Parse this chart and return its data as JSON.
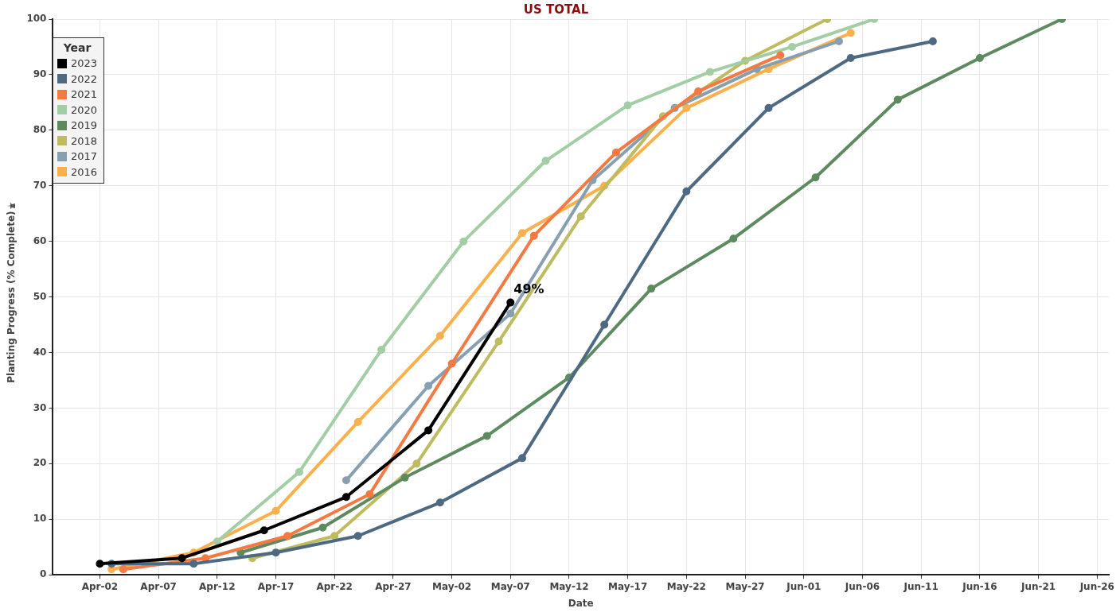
{
  "chart_data": {
    "type": "line",
    "title": "US TOTAL",
    "xlabel": "Date",
    "ylabel": "Planting Progress (% Complete)",
    "legend_title": "Year",
    "legend": "top left",
    "grid": true,
    "marker": "circle",
    "line_style": "solid",
    "xlim": [
      "--03-29",
      "--06-27"
    ],
    "xticks": [
      {
        "value": "--04-02",
        "label": "Apr-02"
      },
      {
        "value": "--04-07",
        "label": "Apr-07"
      },
      {
        "value": "--04-12",
        "label": "Apr-12"
      },
      {
        "value": "--04-17",
        "label": "Apr-17"
      },
      {
        "value": "--04-22",
        "label": "Apr-22"
      },
      {
        "value": "--04-27",
        "label": "Apr-27"
      },
      {
        "value": "--05-02",
        "label": "May-02"
      },
      {
        "value": "--05-07",
        "label": "May-07"
      },
      {
        "value": "--05-12",
        "label": "May-12"
      },
      {
        "value": "--05-17",
        "label": "May-17"
      },
      {
        "value": "--05-22",
        "label": "May-22"
      },
      {
        "value": "--05-27",
        "label": "May-27"
      },
      {
        "value": "--06-01",
        "label": "Jun-01"
      },
      {
        "value": "--06-06",
        "label": "Jun-06"
      },
      {
        "value": "--06-11",
        "label": "Jun-11"
      },
      {
        "value": "--06-16",
        "label": "Jun-16"
      },
      {
        "value": "--06-21",
        "label": "Jun-21"
      },
      {
        "value": "--06-26",
        "label": "Jun-26"
      }
    ],
    "ylim": [
      0,
      100
    ],
    "yticks": [
      0,
      10,
      20,
      30,
      40,
      50,
      60,
      70,
      80,
      90,
      100
    ],
    "series": [
      {
        "name": "2023",
        "color": "#000000",
        "x": [
          "--04-02",
          "--04-09",
          "--04-16",
          "--04-23",
          "--04-30",
          "--05-07"
        ],
        "values": [
          2,
          3,
          8,
          14,
          26,
          49
        ]
      },
      {
        "name": "2022",
        "color": "#4e6a82",
        "x": [
          "--04-03",
          "--04-10",
          "--04-17",
          "--04-24",
          "--05-01",
          "--05-08",
          "--05-15",
          "--05-22",
          "--05-29",
          "--06-05",
          "--06-12"
        ],
        "values": [
          2,
          2,
          4,
          7,
          13,
          21,
          45,
          69,
          84,
          93,
          96
        ]
      },
      {
        "name": "2021",
        "color": "#f47942",
        "x": [
          "--04-04",
          "--04-11",
          "--04-18",
          "--04-25",
          "--05-02",
          "--05-09",
          "--05-16",
          "--05-23",
          "--05-30"
        ],
        "values": [
          1,
          3,
          7,
          14.5,
          38,
          61,
          76,
          87,
          93.5
        ]
      },
      {
        "name": "2020",
        "color": "#a3cea5",
        "x": [
          "--04-12",
          "--04-19",
          "--04-26",
          "--05-03",
          "--05-10",
          "--05-17",
          "--05-24",
          "--05-31",
          "--06-07"
        ],
        "values": [
          6,
          18.5,
          40.5,
          60,
          74.5,
          84.5,
          90.5,
          95,
          100
        ]
      },
      {
        "name": "2019",
        "color": "#5d8a5f",
        "x": [
          "--04-14",
          "--04-21",
          "--04-28",
          "--05-05",
          "--05-12",
          "--05-19",
          "--05-26",
          "--06-02",
          "--06-09",
          "--06-16",
          "--06-23"
        ],
        "values": [
          4,
          8.5,
          17.5,
          25,
          35.5,
          51.5,
          60.5,
          71.5,
          85.5,
          93,
          100
        ]
      },
      {
        "name": "2018",
        "color": "#bfbb60",
        "x": [
          "--04-15",
          "--04-22",
          "--04-29",
          "--05-06",
          "--05-13",
          "--05-20",
          "--05-27",
          "--06-03"
        ],
        "values": [
          3,
          7,
          20,
          42,
          64.5,
          82.5,
          92.5,
          100
        ]
      },
      {
        "name": "2017",
        "color": "#86a0b2",
        "x": [
          "--04-23",
          "--04-30",
          "--05-07",
          "--05-14",
          "--05-21",
          "--05-28",
          "--06-04"
        ],
        "values": [
          17,
          34,
          47,
          71,
          84,
          91,
          96
        ]
      },
      {
        "name": "2016",
        "color": "#fbb04e",
        "x": [
          "--04-03",
          "--04-10",
          "--04-17",
          "--04-24",
          "--05-01",
          "--05-08",
          "--05-15",
          "--05-22",
          "--05-29",
          "--06-05"
        ],
        "values": [
          1,
          4,
          11.5,
          27.5,
          43,
          61.5,
          70,
          84,
          91,
          97.5
        ]
      }
    ],
    "annotations": [
      {
        "text": "49%",
        "x": "--05-07",
        "y": 49
      }
    ]
  }
}
